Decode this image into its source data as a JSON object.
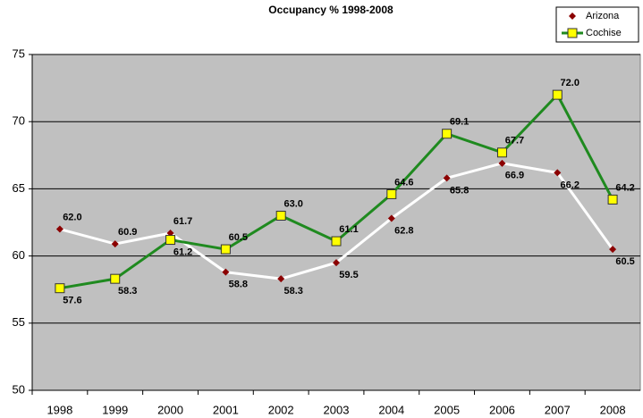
{
  "chart_data": {
    "type": "line",
    "title": "Occupancy % 1998-2008",
    "categories": [
      "1998",
      "1999",
      "2000",
      "2001",
      "2002",
      "2003",
      "2004",
      "2005",
      "2006",
      "2007",
      "2008"
    ],
    "series": [
      {
        "name": "Arizona",
        "color": "#ffffff",
        "marker_color": "#8b0000",
        "values": [
          62.0,
          60.9,
          61.7,
          58.8,
          58.3,
          59.5,
          62.8,
          65.8,
          66.9,
          66.2,
          60.5
        ],
        "value_labels": [
          "62.0",
          "60.9",
          "61.7",
          "58.8",
          "58.3",
          "59.5",
          "62.8",
          "65.8",
          "66.9",
          "66.2",
          "60.5"
        ]
      },
      {
        "name": "Cochise",
        "color": "#1f8a1f",
        "marker_color": "#ffff00",
        "values": [
          57.6,
          58.3,
          61.2,
          60.5,
          63.0,
          61.1,
          64.6,
          69.1,
          67.7,
          72.0,
          64.2
        ],
        "value_labels": [
          "57.6",
          "58.3",
          "61.2",
          "60.5",
          "63.0",
          "61.1",
          "64.6",
          "69.1",
          "67.7",
          "72.0",
          "64.2"
        ]
      }
    ],
    "ylim": [
      50,
      75
    ],
    "yticks": [
      50,
      55,
      60,
      65,
      70,
      75
    ],
    "grid": true,
    "legend": "top-right"
  }
}
